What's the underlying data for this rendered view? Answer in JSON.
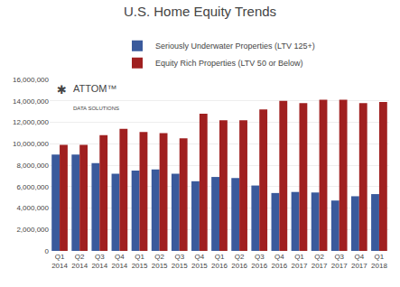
{
  "chart_data": {
    "type": "bar",
    "title": "U.S. Home Equity Trends",
    "categories": [
      "Q1\n2014",
      "Q2\n2014",
      "Q3\n2014",
      "Q4\n2014",
      "Q1\n2015",
      "Q2\n2015",
      "Q3\n2015",
      "Q4\n2015",
      "Q1\n2016",
      "Q2\n2016",
      "Q3\n2016",
      "Q4\n2016",
      "Q1\n2017",
      "Q2\n2017",
      "Q3\n2017",
      "Q4\n2017",
      "Q1\n2018"
    ],
    "series": [
      {
        "name": "Seriously Underwater Properties (LTV 125+)",
        "color": "#3a5a9c",
        "values": [
          9000000,
          9000000,
          8200000,
          7200000,
          7500000,
          7600000,
          7200000,
          6500000,
          6900000,
          6800000,
          6100000,
          5400000,
          5500000,
          5450000,
          4700000,
          5100000,
          5300000
        ]
      },
      {
        "name": "Equity Rich Properties (LTV 50 or Below)",
        "color": "#a02020",
        "values": [
          9900000,
          9900000,
          10800000,
          11400000,
          11100000,
          11000000,
          10500000,
          12800000,
          12200000,
          12200000,
          13200000,
          14000000,
          13800000,
          14100000,
          14100000,
          13800000,
          13900000
        ]
      }
    ],
    "ylim": [
      0,
      16000000
    ],
    "yticks": [
      0,
      {
        "value": 2000000,
        "label": "2,000,000"
      },
      {
        "value": 4000000,
        "label": "4,000,000"
      },
      {
        "value": 6000000,
        "label": "6,000,000"
      },
      {
        "value": 8000000,
        "label": "8,000,000"
      },
      {
        "value": 10000000,
        "label": "10,000,000"
      },
      {
        "value": 12000000,
        "label": "12,000,000"
      },
      {
        "value": 14000000,
        "label": "14,000,000"
      },
      {
        "value": 16000000,
        "label": "16,000,000"
      }
    ],
    "grid": true,
    "legend": "top",
    "annotations": [
      "✱",
      "ATTOM™",
      "DATA SOLUTIONS"
    ]
  }
}
